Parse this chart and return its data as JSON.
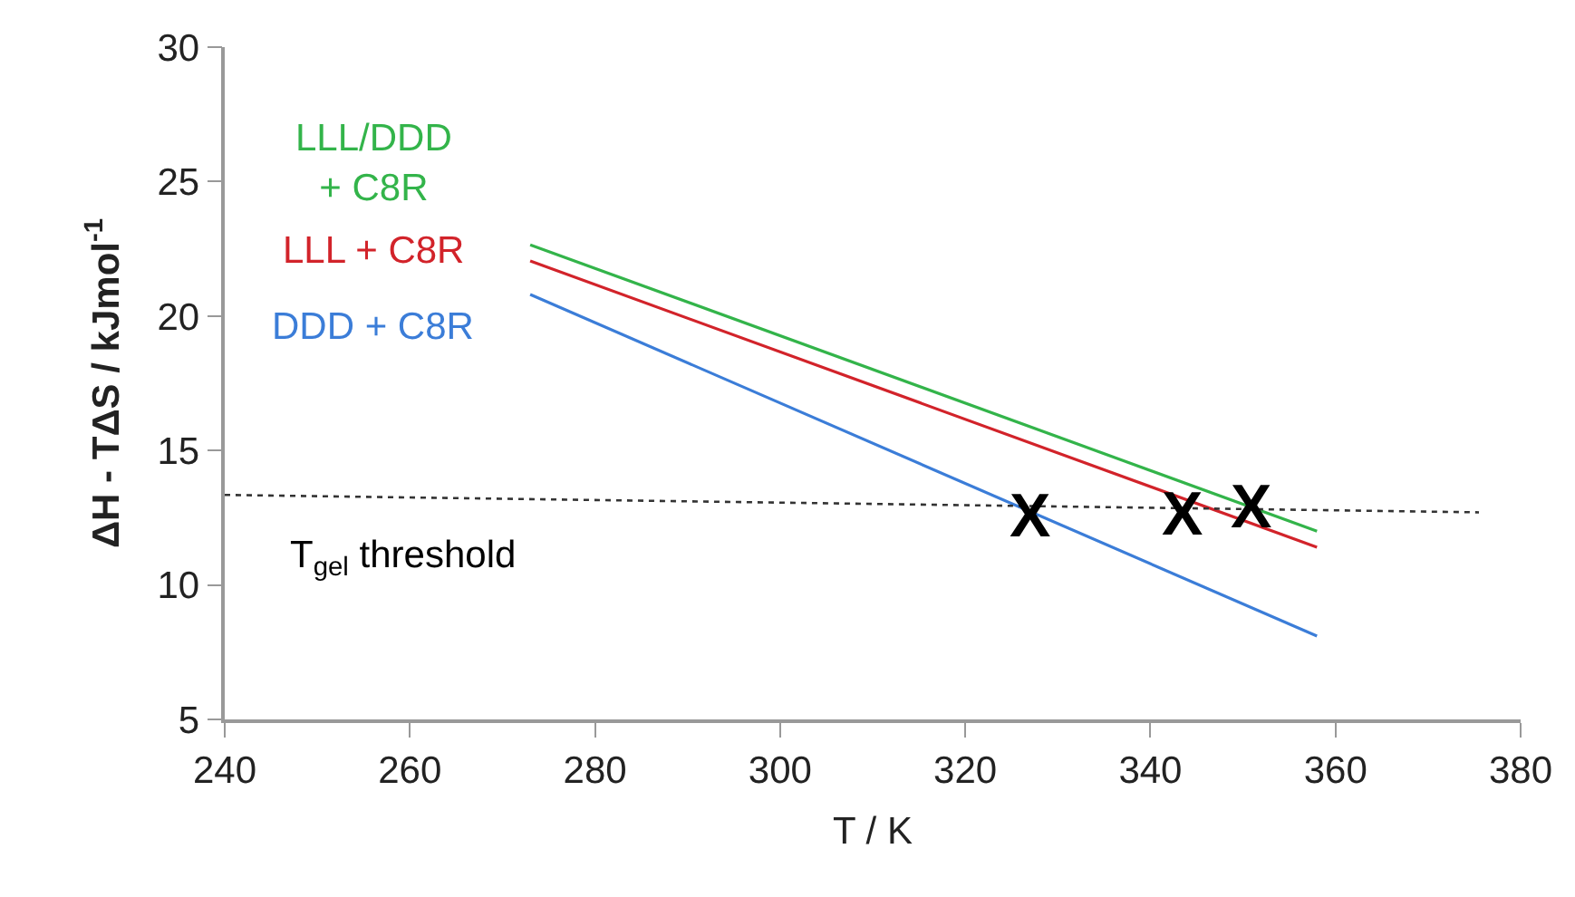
{
  "chart_data": {
    "type": "line",
    "xlabel": "T / K",
    "ylabel": "ΔH - TΔS / kJmol$^{-1}$",
    "xlim": [
      240,
      380
    ],
    "xticks": [
      240,
      260,
      280,
      300,
      320,
      340,
      360,
      380
    ],
    "ylim": [
      5,
      30
    ],
    "yticks": [
      5,
      10,
      15,
      20,
      25,
      30
    ],
    "legend": false,
    "marker": "none",
    "series": [
      {
        "name": "LLL/DDD\n+ C8R",
        "color": "#33b44a",
        "x": [
          273,
          358
        ],
        "values": [
          22.65,
          12.0
        ]
      },
      {
        "name": "LLL + C8R",
        "color": "#d2232a",
        "x": [
          273,
          358
        ],
        "values": [
          22.05,
          11.4
        ]
      },
      {
        "name": "DDD + C8R",
        "color": "#3b7dd8",
        "x": [
          273,
          358
        ],
        "values": [
          20.8,
          8.1
        ]
      },
      {
        "color": "#333333",
        "x": [
          240,
          375.5
        ],
        "values": [
          13.35,
          12.7
        ],
        "line_style": "dotted"
      }
    ],
    "annotations": [
      "T$_{gel}$ threshold",
      {
        "text": "X",
        "x": 327,
        "y": 12.55
      },
      {
        "text": "X",
        "x": 343.4,
        "y": 12.6
      },
      {
        "text": "X",
        "x": 351,
        "y": 12.9
      }
    ]
  }
}
